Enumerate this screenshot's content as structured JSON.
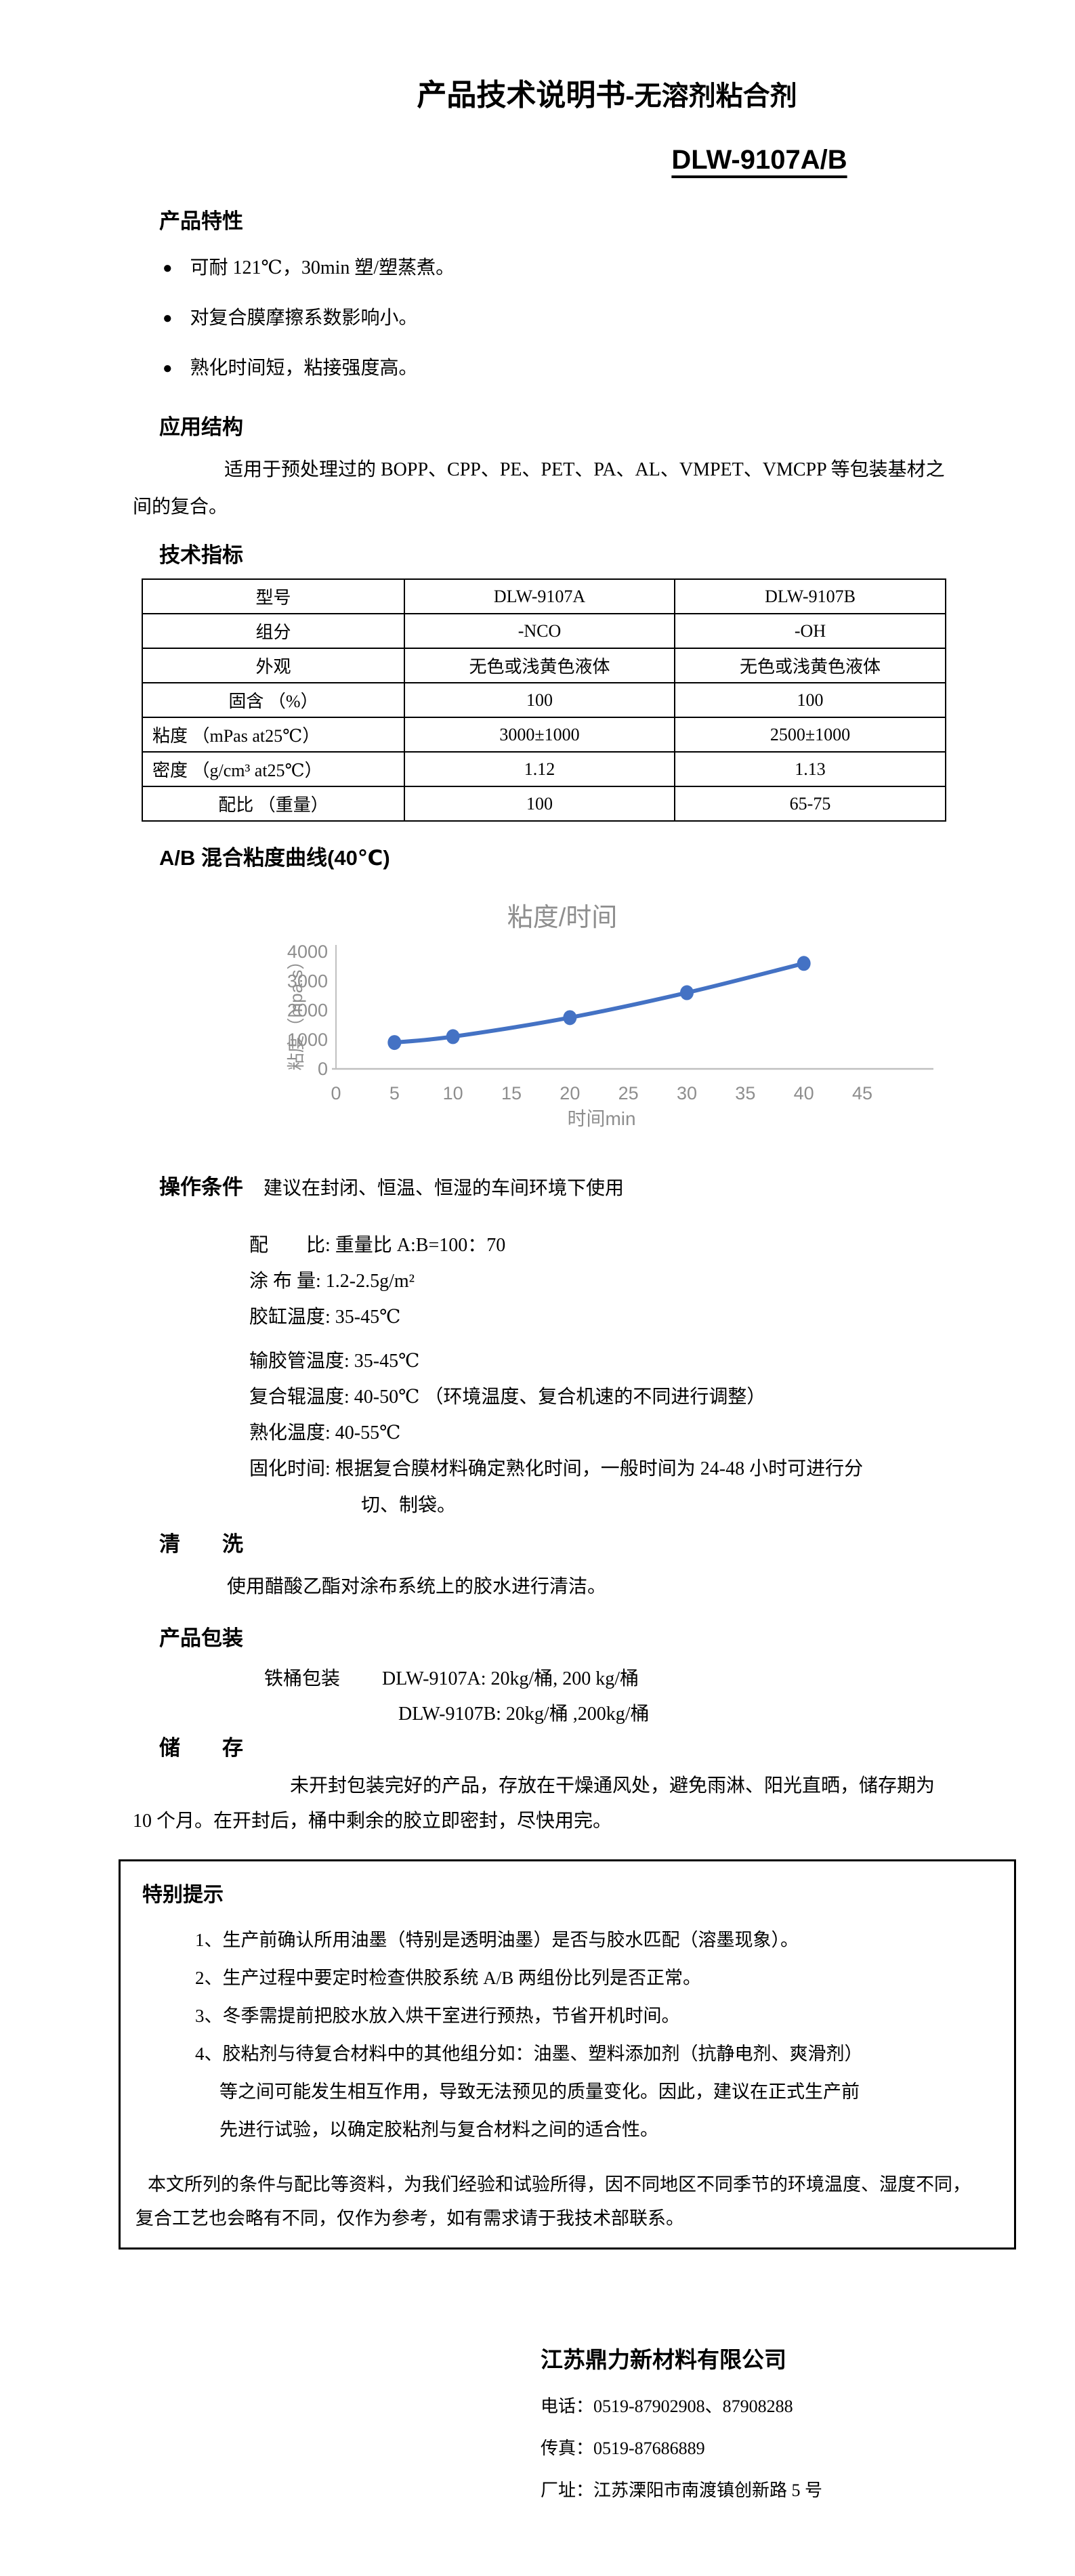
{
  "ui": {
    "bullet_icon": "●"
  },
  "doc": {
    "title_main": "产品技术说明书",
    "title_suffix": "-无溶剂粘合剂",
    "model": "DLW-9107A/B"
  },
  "features": {
    "heading": "产品特性",
    "items": [
      "可耐 121℃，30min 塑/塑蒸煮。",
      "对复合膜摩擦系数影响小。",
      "熟化时间短，粘接强度高。"
    ]
  },
  "application": {
    "heading": "应用结构",
    "text": "适用于预处理过的 BOPP、CPP、PE、PET、PA、AL、VMPET、VMCPP 等包装基材之间的复合。"
  },
  "specs": {
    "heading": "技术指标",
    "rows": [
      {
        "label": "型号",
        "a": "DLW-9107A",
        "b": "DLW-9107B"
      },
      {
        "label": "组分",
        "a": "-NCO",
        "b": "-OH"
      },
      {
        "label": "外观",
        "a": "无色或浅黄色液体",
        "b": "无色或浅黄色液体"
      },
      {
        "label": "固含 （%）",
        "a": "100",
        "b": "100"
      },
      {
        "label": "粘度 （mPas at25℃）",
        "a": "3000±1000",
        "b": "2500±1000"
      },
      {
        "label": "密度 （g/cm³ at25℃）",
        "a": "1.12",
        "b": "1.13"
      },
      {
        "label": "配比 （重量）",
        "a": "100",
        "b": "65-75"
      }
    ]
  },
  "chart_section": {
    "heading": "A/B 混合粘度曲线(40℃)"
  },
  "chart_data": {
    "type": "line",
    "title": "粘度/时间",
    "xlabel": "时间min",
    "ylabel": "粘度（mpa.s）",
    "x": [
      5,
      10,
      20,
      30,
      40
    ],
    "values": [
      900,
      1100,
      1750,
      2600,
      3600
    ],
    "xlim": [
      0,
      45
    ],
    "ylim": [
      0,
      4000
    ],
    "x_ticks": [
      0,
      5,
      10,
      15,
      20,
      25,
      30,
      35,
      40,
      45
    ],
    "y_ticks": [
      0,
      1000,
      2000,
      3000,
      4000
    ],
    "line_color": "#4472c4",
    "axis_color": "#c0c0c0",
    "label_color": "#8e8e8e",
    "grid": false,
    "legend": "none",
    "marker": "circle"
  },
  "operating": {
    "heading": "操作条件",
    "note": "建议在封闭、恒温、恒湿的车间环境下使用",
    "lines1": [
      "配　　比: 重量比 A:B=100：70",
      "涂 布 量: 1.2-2.5g/m²",
      "胶缸温度: 35-45℃"
    ],
    "lines2": [
      "输胶管温度: 35-45℃",
      "复合辊温度: 40-50℃ （环境温度、复合机速的不同进行调整）",
      "熟化温度:  40-55℃"
    ],
    "cure": "固化时间: 根据复合膜材料确定熟化时间，一般时间为 24-48 小时可进行分切、制袋。"
  },
  "cleaning": {
    "heading": "清　　洗",
    "text": "使用醋酸乙酯对涂布系统上的胶水进行清洁。"
  },
  "packaging": {
    "heading": "产品包装",
    "line1_label": "铁桶包装",
    "line1": "DLW-9107A:  20kg/桶, 200 kg/桶",
    "line2": "DLW-9107B:  20kg/桶 ,200kg/桶"
  },
  "storage": {
    "heading": "储　　存",
    "text": "未开封包装完好的产品，存放在干燥通风处，避免雨淋、阳光直晒，储存期为 10 个月。在开封后，桶中剩余的胶立即密封，尽快用完。"
  },
  "notice": {
    "heading": "特别提示",
    "items": [
      "1、生产前确认所用油墨（特别是透明油墨）是否与胶水匹配（溶墨现象）。",
      "2、生产过程中要定时检查供胶系统 A/B 两组份比列是否正常。",
      "3、冬季需提前把胶水放入烘干室进行预热，节省开机时间。",
      "4、胶粘剂与待复合材料中的其他组分如：油墨、塑料添加剂（抗静电剂、爽滑剂）等之间可能发生相互作用，导致无法预见的质量变化。因此，建议在正式生产前先进行试验，以确定胶粘剂与复合材料之间的适合性。"
    ],
    "footnote": "本文所列的条件与配比等资料，为我们经验和试验所得，因不同地区不同季节的环境温度、湿度不同，复合工艺也会略有不同，仅作为参考，如有需求请于我技术部联系。"
  },
  "company": {
    "name": "江苏鼎力新材料有限公司",
    "phone": "电话：0519-87902908、87908288",
    "fax": "传真：0519-87686889",
    "address": "厂址：江苏溧阳市南渡镇创新路 5 号"
  }
}
